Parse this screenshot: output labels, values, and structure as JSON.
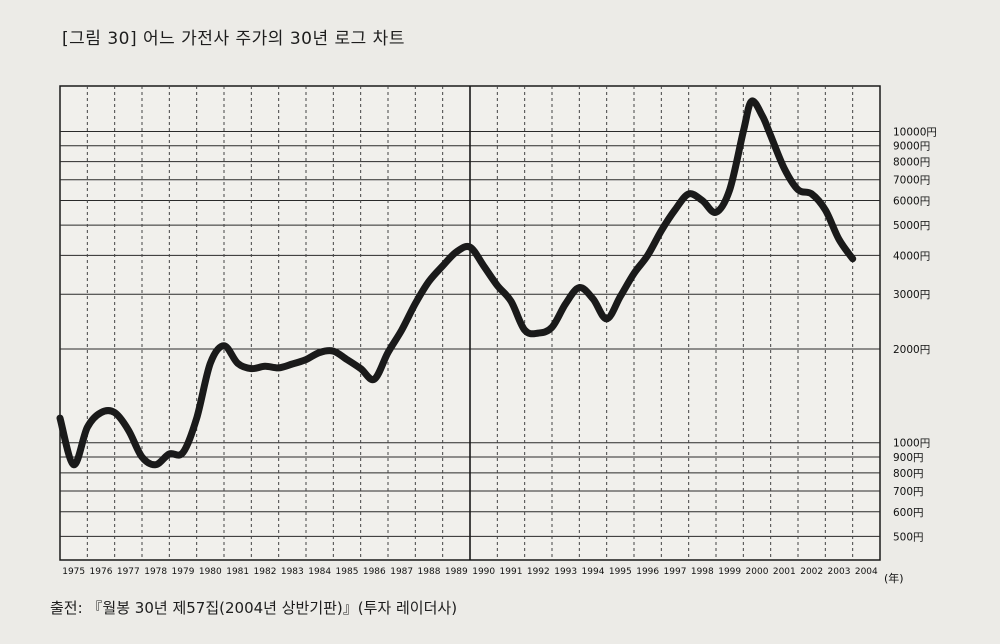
{
  "figure": {
    "title": "[그림 30] 어느 가전사 주가의 30년 로그 차트",
    "source": "출전: 『월봉 30년 제57집(2004년 상반기판)』(투자 레이더사)"
  },
  "chart_data": {
    "type": "line",
    "scale": "log",
    "title": "[그림 30] 어느 가전사 주가의 30년 로그 차트",
    "xlabel": "(年)",
    "ylabel": "",
    "x_ticks": [
      "1975",
      "1976",
      "1977",
      "1978",
      "1979",
      "1980",
      "1981",
      "1982",
      "1983",
      "1984",
      "1985",
      "1986",
      "1987",
      "1988",
      "1989",
      "1990",
      "1991",
      "1992",
      "1993",
      "1994",
      "1995",
      "1996",
      "1997",
      "1998",
      "1999",
      "2000",
      "2001",
      "2002",
      "2003",
      "2004"
    ],
    "y_ticks": [
      {
        "value": 500,
        "label": "500円"
      },
      {
        "value": 600,
        "label": "600円"
      },
      {
        "value": 700,
        "label": "700円"
      },
      {
        "value": 800,
        "label": "800円"
      },
      {
        "value": 900,
        "label": "900円"
      },
      {
        "value": 1000,
        "label": "1000円"
      },
      {
        "value": 2000,
        "label": "2000円"
      },
      {
        "value": 3000,
        "label": "3000円"
      },
      {
        "value": 4000,
        "label": "4000円"
      },
      {
        "value": 5000,
        "label": "5000円"
      },
      {
        "value": 6000,
        "label": "6000円"
      },
      {
        "value": 7000,
        "label": "7000円"
      },
      {
        "value": 8000,
        "label": "8000円"
      },
      {
        "value": 9000,
        "label": "9000円"
      },
      {
        "value": 10000,
        "label": "10000円"
      }
    ],
    "ylim": [
      420,
      14000
    ],
    "xlim": [
      1975,
      2005
    ],
    "grid": true,
    "series": [
      {
        "name": "",
        "x": [
          1975.0,
          1975.5,
          1976.0,
          1976.5,
          1977.0,
          1977.5,
          1978.0,
          1978.5,
          1979.0,
          1979.5,
          1980.0,
          1980.5,
          1981.0,
          1981.5,
          1982.0,
          1982.5,
          1983.0,
          1983.5,
          1984.0,
          1984.5,
          1985.0,
          1985.5,
          1986.0,
          1986.5,
          1987.0,
          1987.5,
          1988.0,
          1988.5,
          1989.0,
          1989.5,
          1990.0,
          1990.5,
          1991.0,
          1991.5,
          1992.0,
          1992.5,
          1993.0,
          1993.5,
          1994.0,
          1994.5,
          1995.0,
          1995.5,
          1996.0,
          1996.5,
          1997.0,
          1997.5,
          1998.0,
          1998.5,
          1999.0,
          1999.5,
          2000.0,
          2000.3,
          2000.7,
          2001.0,
          2001.5,
          2002.0,
          2002.5,
          2003.0,
          2003.5,
          2004.0
        ],
        "values": [
          1200,
          850,
          1120,
          1250,
          1250,
          1100,
          900,
          850,
          920,
          930,
          1200,
          1800,
          2050,
          1800,
          1730,
          1760,
          1740,
          1790,
          1850,
          1950,
          1970,
          1850,
          1730,
          1600,
          1950,
          2300,
          2800,
          3300,
          3700,
          4100,
          4250,
          3700,
          3200,
          2850,
          2300,
          2250,
          2350,
          2800,
          3150,
          2900,
          2500,
          2950,
          3500,
          4000,
          4800,
          5600,
          6300,
          6000,
          5500,
          6500,
          10000,
          12500,
          11200,
          9700,
          7600,
          6500,
          6300,
          5600,
          4500,
          3900
        ]
      }
    ]
  }
}
